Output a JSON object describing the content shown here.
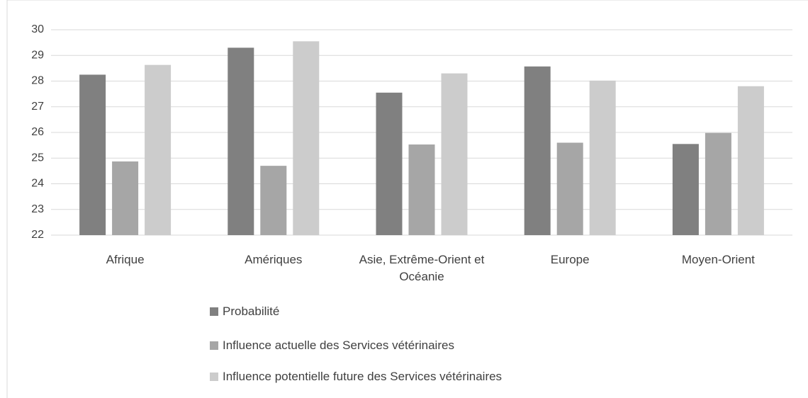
{
  "chart_data": {
    "type": "bar",
    "categories": [
      "Afrique",
      "Amériques",
      "Asie, Extrême-Orient et Océanie",
      "Europe",
      "Moyen-Orient"
    ],
    "series": [
      {
        "name": "Probabilité",
        "color": "#808080",
        "values": [
          28.25,
          29.3,
          27.55,
          28.57,
          25.55
        ]
      },
      {
        "name": "Influence actuelle des Services vétérinaires",
        "color": "#a6a6a6",
        "values": [
          24.87,
          24.7,
          25.53,
          25.6,
          25.98
        ]
      },
      {
        "name": "Influence potentielle future des Services vétérinaires",
        "color": "#cccccc",
        "values": [
          28.63,
          29.55,
          28.3,
          28.02,
          27.8
        ]
      }
    ],
    "ylim": [
      22,
      30
    ],
    "yticks": [
      22,
      23,
      24,
      25,
      26,
      27,
      28,
      29,
      30
    ],
    "grid": true,
    "legend": "bottom"
  }
}
